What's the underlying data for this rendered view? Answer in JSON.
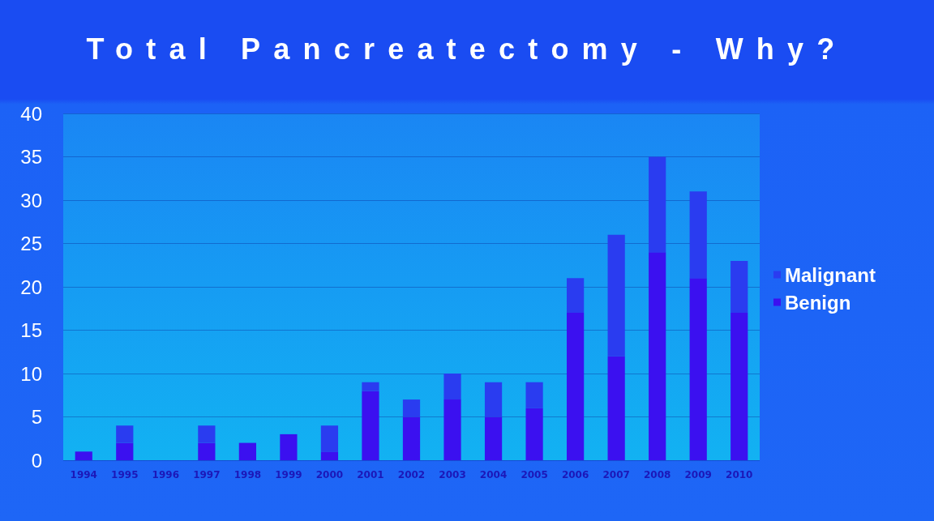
{
  "chart_data": {
    "type": "bar",
    "title": "Total Pancreatectomy - Why?",
    "categories": [
      "1994",
      "1995",
      "1996",
      "1997",
      "1998",
      "1999",
      "2000",
      "2001",
      "2002",
      "2003",
      "2004",
      "2005",
      "2006",
      "2007",
      "2008",
      "2009",
      "2010"
    ],
    "stacked": true,
    "series": [
      {
        "name": "Benign",
        "color": "#3b10f0",
        "values": [
          1,
          2,
          0,
          2,
          2,
          3,
          1,
          8,
          5,
          7,
          5,
          6,
          17,
          12,
          24,
          21,
          17
        ]
      },
      {
        "name": "Malignant",
        "color": "#2a3cf0",
        "values": [
          0,
          2,
          0,
          2,
          0,
          0,
          3,
          1,
          2,
          3,
          4,
          3,
          4,
          14,
          11,
          10,
          6
        ]
      }
    ],
    "ylim": [
      0,
      40
    ],
    "yticks": [
      0,
      5,
      10,
      15,
      20,
      25,
      30,
      35,
      40
    ],
    "grid": "y",
    "legend": "right"
  }
}
